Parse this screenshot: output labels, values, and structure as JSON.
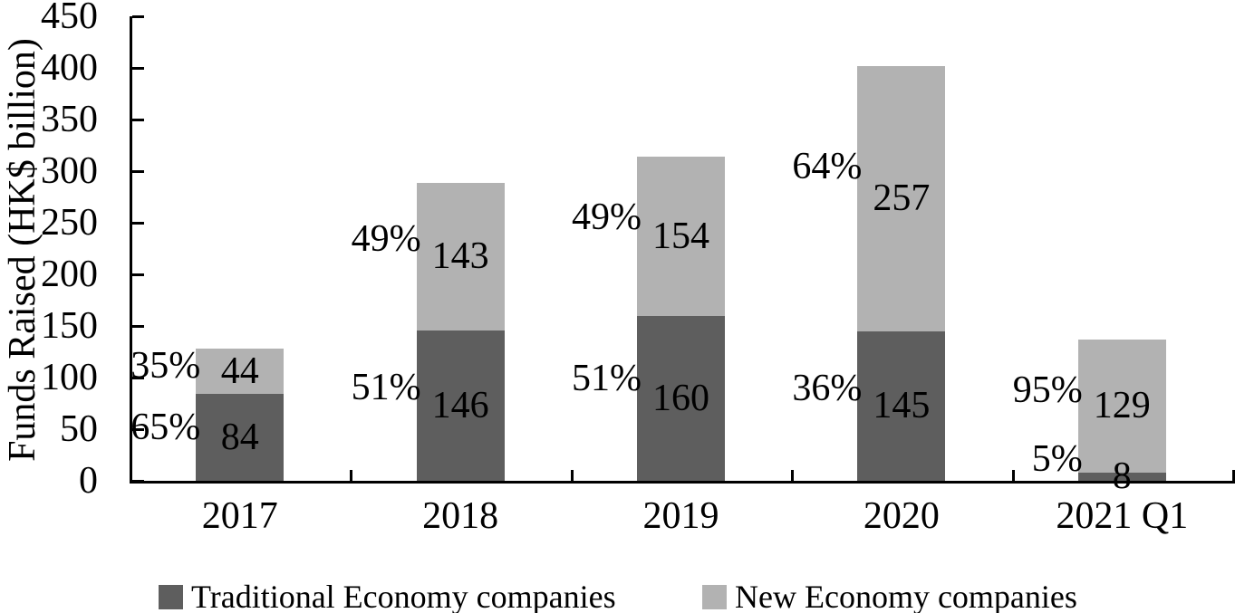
{
  "chart_data": {
    "type": "bar",
    "stacked": true,
    "title": "",
    "xlabel": "",
    "ylabel": "Funds Raised (HK$ billion)",
    "ylim": [
      0,
      450
    ],
    "ytick_step": 50,
    "grid": false,
    "legend_position": "bottom",
    "categories": [
      "2017",
      "2018",
      "2019",
      "2020",
      "2021 Q1"
    ],
    "series": [
      {
        "name": "Traditional Economy companies",
        "color": "#5E5E5E",
        "values": [
          84,
          146,
          160,
          145,
          8
        ],
        "pct_labels": [
          "65%",
          "51%",
          "51%",
          "36%",
          "5%"
        ]
      },
      {
        "name": "New Economy companies",
        "color": "#B2B2B2",
        "values": [
          44,
          143,
          154,
          257,
          129
        ],
        "pct_labels": [
          "35%",
          "49%",
          "49%",
          "64%",
          "95%"
        ]
      }
    ],
    "axis_color": "#000000",
    "text_color": "#000000"
  }
}
